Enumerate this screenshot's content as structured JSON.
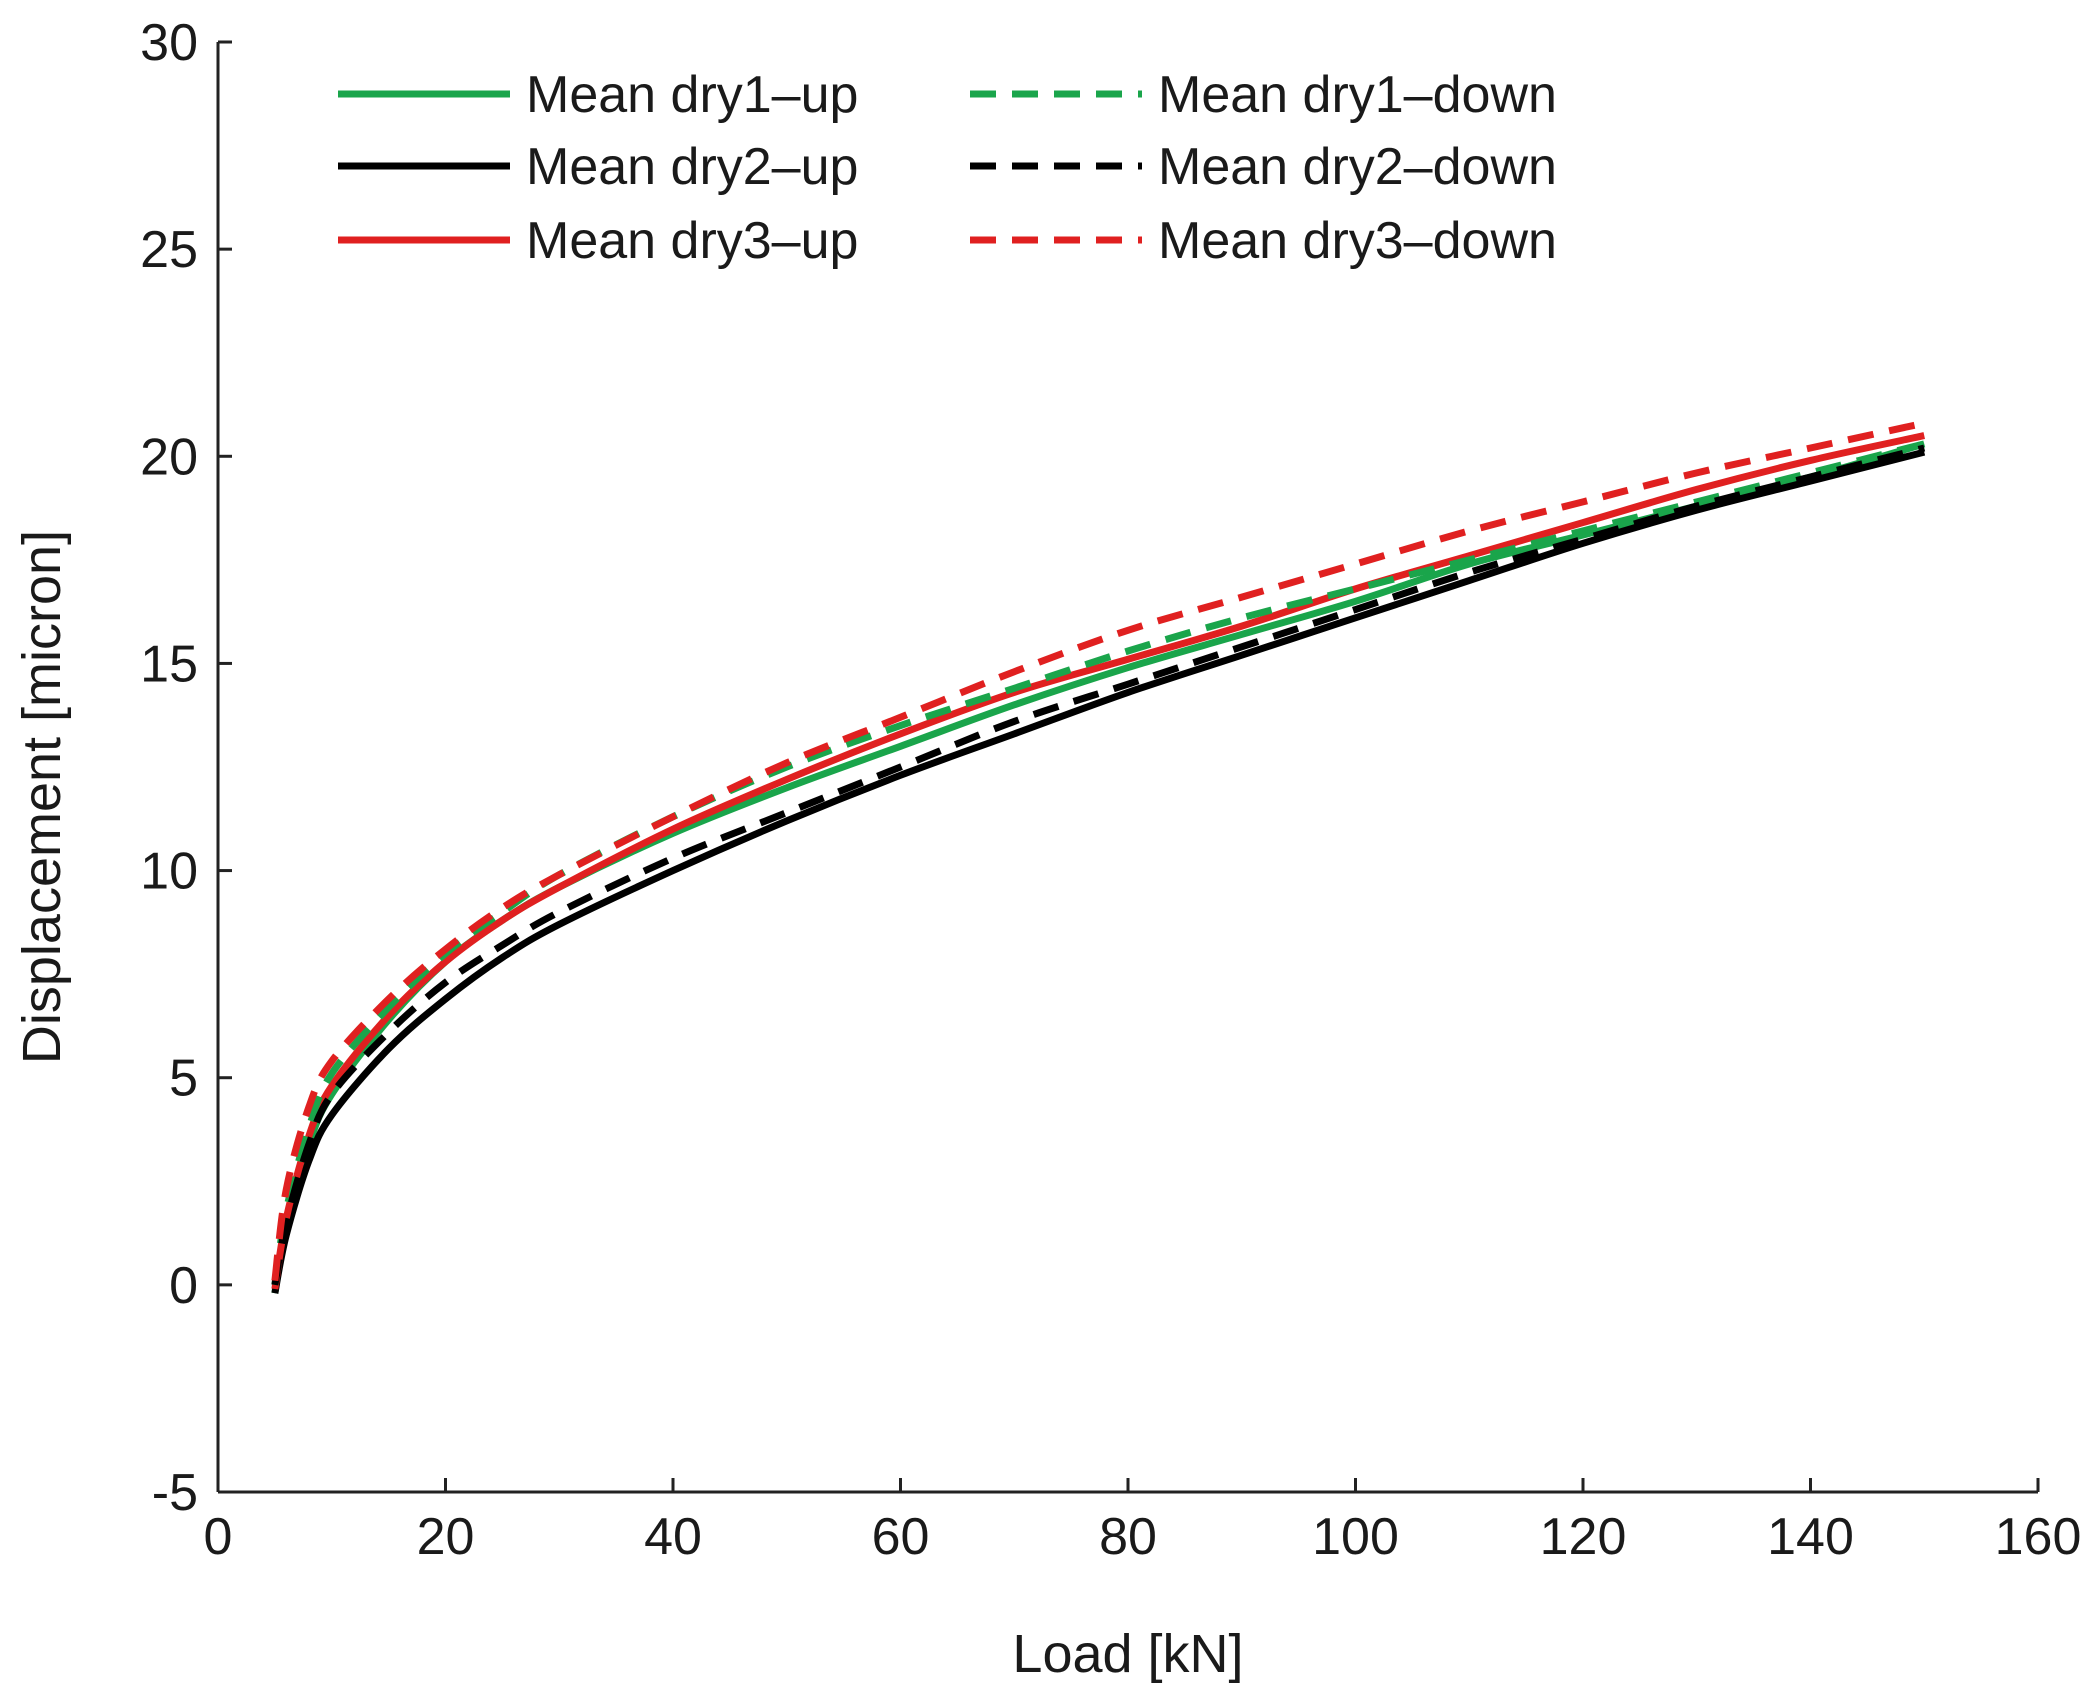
{
  "chart_data": {
    "type": "line",
    "title": "",
    "xlabel": "Load [kN]",
    "ylabel": "Displacement [micron]",
    "xlim": [
      0,
      160
    ],
    "ylim": [
      -5,
      30
    ],
    "xticks": [
      0,
      20,
      40,
      60,
      80,
      100,
      120,
      140,
      160
    ],
    "yticks": [
      -5,
      0,
      5,
      10,
      15,
      20,
      25,
      30
    ],
    "xtick_labels": [
      "0",
      "20",
      "40",
      "60",
      "80",
      "100",
      "120",
      "140",
      "160"
    ],
    "ytick_labels": [
      "-5",
      "0",
      "5",
      "10",
      "15",
      "20",
      "25",
      "30"
    ],
    "grid": false,
    "legend_position": "top-left",
    "series": [
      {
        "name": "Mean dry1–up",
        "color": "#1aa54b",
        "style": "solid",
        "x": [
          5,
          6,
          8,
          10,
          15,
          20,
          25,
          30,
          40,
          50,
          60,
          70,
          80,
          90,
          100,
          110,
          120,
          130,
          140,
          150
        ],
        "y": [
          -0.2,
          1.5,
          3.4,
          4.6,
          6.4,
          7.8,
          8.8,
          9.6,
          10.9,
          12.0,
          13.0,
          14.0,
          14.9,
          15.7,
          16.5,
          17.4,
          18.1,
          18.8,
          19.5,
          20.3
        ]
      },
      {
        "name": "Mean dry1–down",
        "color": "#1aa54b",
        "style": "dashed",
        "x": [
          5,
          6,
          8,
          10,
          15,
          20,
          25,
          30,
          40,
          50,
          60,
          70,
          80,
          90,
          100,
          110,
          120,
          130,
          140,
          150
        ],
        "y": [
          0.0,
          1.8,
          3.8,
          5.1,
          6.7,
          8.0,
          9.0,
          9.9,
          11.3,
          12.5,
          13.5,
          14.4,
          15.3,
          16.1,
          16.8,
          17.5,
          18.2,
          18.9,
          19.6,
          20.3
        ]
      },
      {
        "name": "Mean dry2–up",
        "color": "#000000",
        "style": "solid",
        "x": [
          5,
          6,
          8,
          10,
          15,
          20,
          25,
          30,
          40,
          50,
          60,
          70,
          80,
          90,
          100,
          110,
          120,
          130,
          140,
          150
        ],
        "y": [
          -0.2,
          1.2,
          3.0,
          4.1,
          5.7,
          6.9,
          7.9,
          8.7,
          10.0,
          11.2,
          12.3,
          13.3,
          14.3,
          15.2,
          16.1,
          17.0,
          17.9,
          18.7,
          19.4,
          20.1
        ]
      },
      {
        "name": "Mean dry2–down",
        "color": "#000000",
        "style": "dashed",
        "x": [
          5,
          6,
          8,
          10,
          15,
          20,
          25,
          30,
          40,
          50,
          60,
          70,
          80,
          90,
          100,
          110,
          120,
          130,
          140,
          150
        ],
        "y": [
          0.0,
          1.5,
          3.4,
          4.6,
          6.1,
          7.3,
          8.2,
          9.0,
          10.3,
          11.4,
          12.5,
          13.6,
          14.5,
          15.4,
          16.3,
          17.2,
          18.0,
          18.8,
          19.5,
          20.2
        ]
      },
      {
        "name": "Mean dry3–up",
        "color": "#e02020",
        "style": "solid",
        "x": [
          5,
          6,
          8,
          10,
          15,
          20,
          25,
          30,
          40,
          50,
          60,
          70,
          80,
          90,
          100,
          110,
          120,
          130,
          140,
          150
        ],
        "y": [
          -0.1,
          1.6,
          3.6,
          4.8,
          6.5,
          7.8,
          8.8,
          9.6,
          11.0,
          12.2,
          13.3,
          14.3,
          15.1,
          15.9,
          16.8,
          17.6,
          18.4,
          19.2,
          19.9,
          20.5
        ]
      },
      {
        "name": "Mean dry3–down",
        "color": "#e02020",
        "style": "dashed",
        "x": [
          5,
          6,
          8,
          10,
          15,
          20,
          25,
          30,
          40,
          50,
          60,
          70,
          80,
          90,
          100,
          110,
          120,
          130,
          140,
          150
        ],
        "y": [
          0.1,
          2.3,
          4.3,
          5.4,
          6.9,
          8.1,
          9.1,
          9.9,
          11.3,
          12.6,
          13.7,
          14.8,
          15.8,
          16.6,
          17.4,
          18.2,
          18.9,
          19.6,
          20.2,
          20.8
        ]
      }
    ]
  }
}
